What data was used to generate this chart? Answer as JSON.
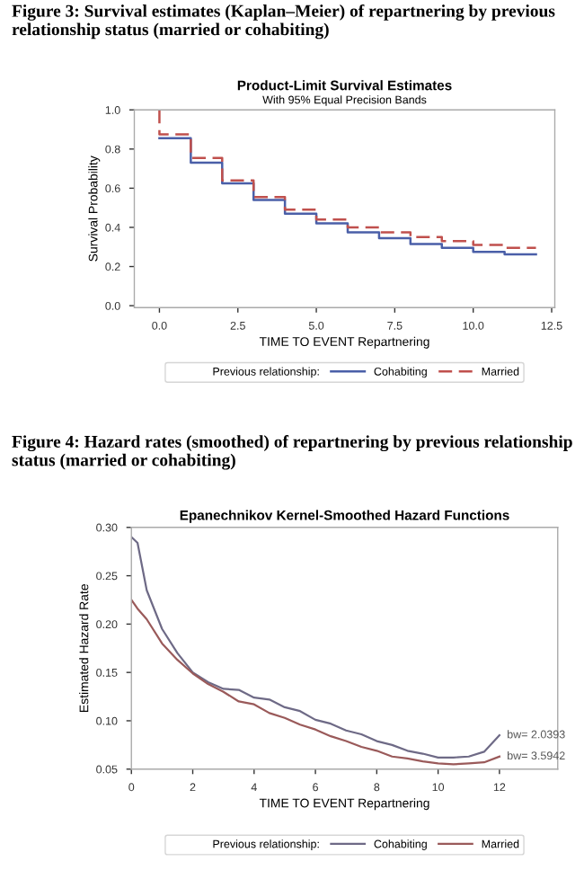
{
  "chart_data": [
    {
      "type": "step",
      "title": "Product-Limit Survival Estimates",
      "subtitle": "With 95% Equal Precision Bands",
      "xlabel": "TIME TO EVENT Repartnering",
      "ylabel": "Survival Probability",
      "legend_title": "Previous relationship:",
      "annotations": [
        "Figure 3: Survival estimates (Kaplan–Meier) of repartnering by previous relationship status (married or cohabiting)"
      ],
      "x": [
        0,
        0,
        1,
        2,
        3,
        4,
        5,
        6,
        7,
        8,
        9,
        10,
        11,
        12
      ],
      "series": [
        {
          "name": "Cohabiting",
          "color": "#4a5fa8",
          "line_style": "solid",
          "values": [
            null,
            0.855,
            0.73,
            0.625,
            0.54,
            0.47,
            0.42,
            0.375,
            0.345,
            0.315,
            0.295,
            0.275,
            0.262,
            0.262
          ]
        },
        {
          "name": "Married",
          "color": "#c0504d",
          "line_style": "dashed",
          "values": [
            1.0,
            0.875,
            0.755,
            0.64,
            0.555,
            0.49,
            0.44,
            0.4,
            0.375,
            0.35,
            0.33,
            0.31,
            0.295,
            0.295
          ]
        }
      ],
      "xlim": [
        -0.8,
        12.6
      ],
      "ylim": [
        -0.01,
        1.0
      ],
      "xticks": [
        {
          "value": 0,
          "label": "0.0"
        },
        {
          "value": 2.5,
          "label": "2.5"
        },
        {
          "value": 5,
          "label": "5.0"
        },
        {
          "value": 7.5,
          "label": "7.5"
        },
        {
          "value": 10,
          "label": "10.0"
        },
        {
          "value": 12.5,
          "label": "12.5"
        }
      ],
      "yticks": [
        {
          "value": 0,
          "label": "0.0"
        },
        {
          "value": 0.2,
          "label": "0.2"
        },
        {
          "value": 0.4,
          "label": "0.4"
        },
        {
          "value": 0.6,
          "label": "0.6"
        },
        {
          "value": 0.8,
          "label": "0.8"
        },
        {
          "value": 1.0,
          "label": "1.0"
        }
      ],
      "grid": false,
      "legend": "bottom"
    },
    {
      "type": "line",
      "title": "Epanechnikov Kernel-Smoothed Hazard Functions",
      "xlabel": "TIME TO EVENT Repartnering",
      "ylabel": "Estimated Hazard Rate",
      "legend_title": "Previous relationship:",
      "annotations": [
        "Figure 4: Hazard rates (smoothed) of repartnering by previous relationship status (married or cohabiting)",
        {
          "text": "bw= 2.0393",
          "x": 12,
          "y": 0.085
        },
        {
          "text": "bw= 3.5942",
          "x": 12,
          "y": 0.063
        }
      ],
      "x": [
        0,
        0.2,
        0.5,
        1,
        1.5,
        2,
        2.5,
        3,
        3.5,
        4,
        4.5,
        5,
        5.5,
        6,
        6.5,
        7,
        7.5,
        8,
        8.5,
        9,
        9.5,
        10,
        10.5,
        11,
        11.5,
        12
      ],
      "series": [
        {
          "name": "Cohabiting",
          "color": "#6e6a86",
          "values": [
            0.29,
            0.284,
            0.235,
            0.195,
            0.17,
            0.15,
            0.14,
            0.133,
            0.132,
            0.124,
            0.122,
            0.114,
            0.11,
            0.101,
            0.097,
            0.09,
            0.086,
            0.079,
            0.075,
            0.069,
            0.066,
            0.062,
            0.062,
            0.063,
            0.068,
            0.085
          ]
        },
        {
          "name": "Married",
          "color": "#9a5a5a",
          "values": [
            0.225,
            0.216,
            0.205,
            0.18,
            0.163,
            0.149,
            0.138,
            0.13,
            0.12,
            0.117,
            0.108,
            0.103,
            0.096,
            0.091,
            0.084,
            0.079,
            0.073,
            0.069,
            0.063,
            0.061,
            0.058,
            0.056,
            0.055,
            0.056,
            0.057,
            0.063
          ]
        }
      ],
      "xlim": [
        0,
        13.9
      ],
      "ylim": [
        0.05,
        0.3
      ],
      "xticks": [
        0,
        2,
        4,
        6,
        8,
        10,
        12
      ],
      "yticks": [
        {
          "value": 0.05,
          "label": "0.05"
        },
        {
          "value": 0.1,
          "label": "0.10"
        },
        {
          "value": 0.15,
          "label": "0.15"
        },
        {
          "value": 0.2,
          "label": "0.20"
        },
        {
          "value": 0.25,
          "label": "0.25"
        },
        {
          "value": 0.3,
          "label": "0.30"
        }
      ],
      "grid": false,
      "legend": "bottom"
    }
  ]
}
